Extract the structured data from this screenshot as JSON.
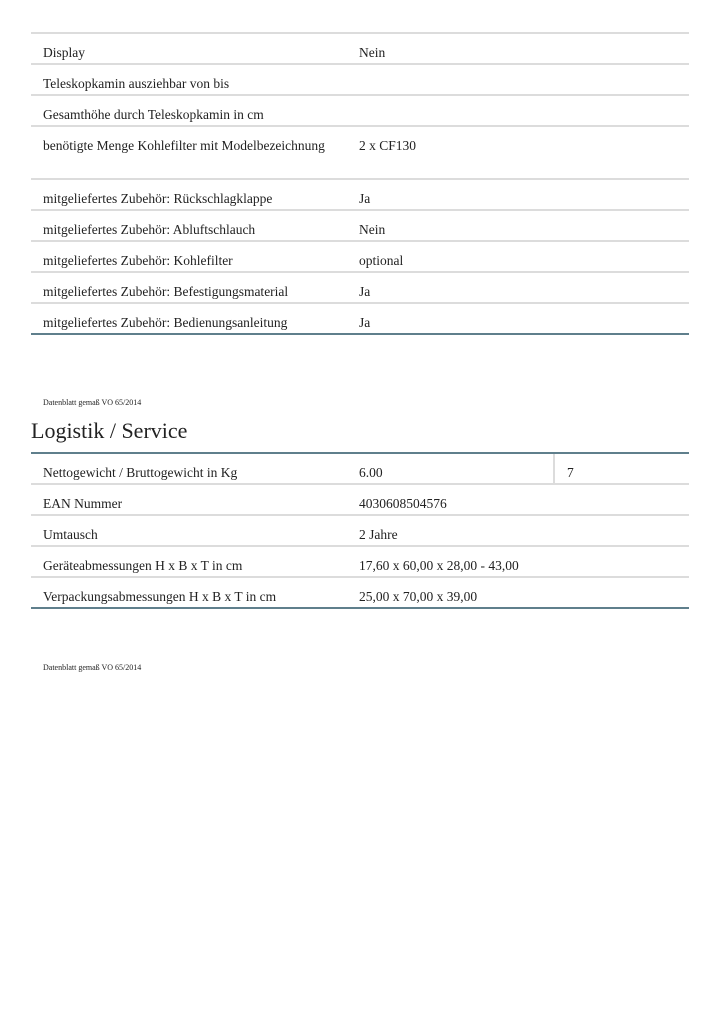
{
  "table1": [
    {
      "label": "Display",
      "value": "Nein"
    },
    {
      "label": "Teleskopkamin ausziehbar von bis",
      "value": ""
    },
    {
      "label": "Gesamthöhe durch Teleskopkamin in cm",
      "value": ""
    },
    {
      "label": "benötigte Menge Kohlefilter mit Modelbezeichnung",
      "value": "2 x CF130"
    },
    {
      "label": "mitgeliefertes Zubehör: Rückschlagklappe",
      "value": "Ja"
    },
    {
      "label": "mitgeliefertes Zubehör: Abluftschlauch",
      "value": "Nein"
    },
    {
      "label": "mitgeliefertes Zubehör: Kohlefilter",
      "value": "optional"
    },
    {
      "label": "mitgeliefertes Zubehör: Befestigungsmaterial",
      "value": "Ja"
    },
    {
      "label": "mitgeliefertes Zubehör: Bedienungsanleitung",
      "value": "Ja"
    }
  ],
  "note1": "Datenblatt gemaß VO 65/2014",
  "section_title": "Logistik / Service",
  "table2": [
    {
      "label": "Nettogewicht / Bruttogewicht in Kg",
      "value": "6.00",
      "value2": "7"
    },
    {
      "label": "EAN Nummer",
      "value": "4030608504576"
    },
    {
      "label": "Umtausch",
      "value": "2 Jahre"
    },
    {
      "label": "Geräteabmessungen H x B x T in cm",
      "value": "17,60 x 60,00 x 28,00 - 43,00"
    },
    {
      "label": "Verpackungsabmessungen H x B x T in cm",
      "value": "25,00 x 70,00 x 39,00"
    }
  ],
  "note2": "Datenblatt gemaß VO 65/2014"
}
